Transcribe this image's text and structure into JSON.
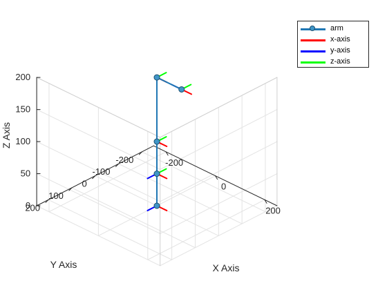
{
  "chart_data": {
    "type": "line",
    "projection": "3d",
    "xlabel": "X Axis",
    "ylabel": "Y Axis",
    "zlabel": "Z Axis",
    "xlim": [
      -250,
      250
    ],
    "ylim": [
      -250,
      250
    ],
    "zlim": [
      0,
      200
    ],
    "x_ticks": [
      "-200",
      "0",
      "200"
    ],
    "y_ticks": [
      "200",
      "100",
      "0",
      "-100",
      "-200"
    ],
    "z_ticks": [
      "0",
      "50",
      "100",
      "150",
      "200"
    ],
    "grid": true,
    "legend_position": "top-right",
    "legend": [
      "arm",
      "x-axis",
      "y-axis",
      "z-axis"
    ],
    "series": [
      {
        "name": "arm",
        "color": "#1f77b4",
        "marker": "circle",
        "points": [
          [
            0,
            0,
            0
          ],
          [
            0,
            0,
            50
          ],
          [
            0,
            0,
            100
          ],
          [
            0,
            0,
            200
          ],
          [
            100,
            0,
            200
          ]
        ]
      },
      {
        "name": "x-axis",
        "color": "#ff0000"
      },
      {
        "name": "y-axis",
        "color": "#0000ff"
      },
      {
        "name": "z-axis",
        "color": "#00ff00"
      }
    ],
    "frames": [
      {
        "origin": [
          0,
          0,
          0
        ],
        "x": [
          1,
          0,
          0
        ],
        "y": [
          0,
          1,
          0
        ],
        "z": [
          0,
          0,
          1
        ]
      },
      {
        "origin": [
          0,
          0,
          50
        ],
        "x": [
          1,
          0,
          0
        ],
        "y": [
          0,
          1,
          0
        ],
        "z": [
          0,
          -1,
          0
        ]
      },
      {
        "origin": [
          0,
          0,
          100
        ],
        "x": [
          1,
          0,
          0
        ],
        "y": [
          0,
          0,
          -1
        ],
        "z": [
          0,
          -1,
          0
        ]
      },
      {
        "origin": [
          0,
          0,
          200
        ],
        "x": [
          1,
          0,
          0
        ],
        "y": [
          0,
          0,
          -1
        ],
        "z": [
          0,
          -1,
          0
        ]
      },
      {
        "origin": [
          100,
          0,
          200
        ],
        "x": [
          1,
          0,
          0
        ],
        "y": [
          -1,
          0,
          0
        ],
        "z": [
          0,
          -1,
          0
        ]
      }
    ],
    "frame_axis_length": 40
  }
}
